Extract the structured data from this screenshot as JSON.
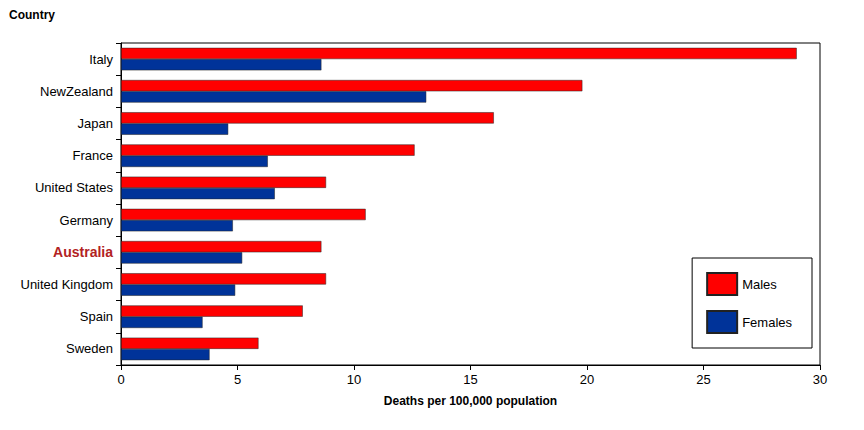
{
  "chart_data": {
    "type": "bar",
    "orientation": "horizontal",
    "y_label": "Country",
    "x_label": "Deaths per 100,000 population",
    "categories": [
      "Italy",
      "NewZealand",
      "Japan",
      "France",
      "United States",
      "Germany",
      "Australia",
      "United Kingdom",
      "Spain",
      "Sweden"
    ],
    "series": [
      {
        "name": "Males",
        "color": "#ff0000",
        "values": [
          29,
          19.8,
          16,
          12.6,
          8.8,
          10.5,
          8.6,
          8.8,
          7.8,
          5.9
        ]
      },
      {
        "name": "Females",
        "color": "#003399",
        "values": [
          8.6,
          13.1,
          4.6,
          6.3,
          6.6,
          4.8,
          5.2,
          4.9,
          3.5,
          3.8
        ]
      }
    ],
    "xlim": [
      0,
      30
    ],
    "xticks": [
      0,
      5,
      10,
      15,
      20,
      25,
      30
    ],
    "grid": false,
    "legend": "bottom-right"
  }
}
